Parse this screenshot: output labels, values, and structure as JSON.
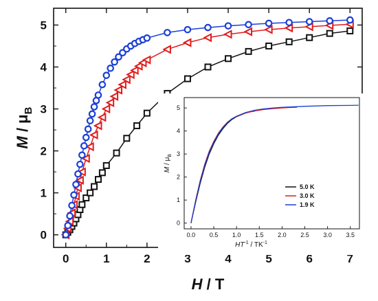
{
  "chart_data": [
    {
      "type": "scatter",
      "xlabel_main": "H",
      "xlabel_unit": " / T",
      "ylabel_main": "M",
      "ylabel_unit": " / μ",
      "ylabel_sub": "B",
      "xlim": [
        -0.3,
        7.3
      ],
      "ylim": [
        -0.3,
        5.4
      ],
      "xticks": [
        "0",
        "1",
        "2",
        "3",
        "4",
        "5",
        "6",
        "7"
      ],
      "yticks": [
        "0",
        "1",
        "2",
        "3",
        "4",
        "5"
      ],
      "series": [
        {
          "marker": "square",
          "color": "#111111",
          "x": [
            0.0,
            0.05,
            0.1,
            0.15,
            0.2,
            0.25,
            0.3,
            0.35,
            0.4,
            0.5,
            0.6,
            0.7,
            0.8,
            0.9,
            1.0,
            1.25,
            1.5,
            1.75,
            2.0,
            2.5,
            3.0,
            3.5,
            4.0,
            4.5,
            5.0,
            5.5,
            6.0,
            6.5,
            7.0
          ],
          "y": [
            0.0,
            0.06,
            0.12,
            0.2,
            0.28,
            0.38,
            0.48,
            0.6,
            0.72,
            0.88,
            1.0,
            1.15,
            1.32,
            1.48,
            1.65,
            1.95,
            2.3,
            2.6,
            2.9,
            3.37,
            3.72,
            4.0,
            4.2,
            4.37,
            4.5,
            4.6,
            4.7,
            4.8,
            4.86
          ]
        },
        {
          "marker": "triangle-left",
          "color": "#e01b1b",
          "x": [
            0.0,
            0.05,
            0.1,
            0.15,
            0.2,
            0.25,
            0.3,
            0.35,
            0.4,
            0.5,
            0.6,
            0.7,
            0.8,
            0.9,
            1.0,
            1.1,
            1.2,
            1.3,
            1.4,
            1.5,
            1.6,
            1.7,
            1.8,
            1.9,
            2.0,
            2.5,
            3.0,
            3.5,
            4.0,
            4.5,
            5.0,
            5.5,
            6.0,
            6.5,
            7.0
          ],
          "y": [
            0.0,
            0.15,
            0.32,
            0.52,
            0.72,
            0.92,
            1.12,
            1.3,
            1.5,
            1.82,
            2.1,
            2.38,
            2.6,
            2.8,
            3.0,
            3.15,
            3.3,
            3.45,
            3.58,
            3.7,
            3.82,
            3.92,
            4.02,
            4.1,
            4.17,
            4.42,
            4.58,
            4.7,
            4.78,
            4.84,
            4.89,
            4.93,
            4.96,
            4.99,
            5.02
          ]
        },
        {
          "marker": "circle",
          "color": "#1a3fd6",
          "x": [
            0.0,
            0.05,
            0.1,
            0.15,
            0.2,
            0.25,
            0.3,
            0.35,
            0.4,
            0.45,
            0.5,
            0.55,
            0.6,
            0.65,
            0.7,
            0.75,
            0.8,
            0.9,
            1.0,
            1.1,
            1.2,
            1.3,
            1.4,
            1.5,
            1.6,
            1.7,
            1.8,
            1.9,
            2.0,
            2.5,
            3.0,
            3.5,
            4.0,
            4.5,
            5.0,
            5.5,
            6.0,
            6.5,
            7.0
          ],
          "y": [
            0.0,
            0.22,
            0.45,
            0.7,
            0.95,
            1.2,
            1.45,
            1.68,
            1.9,
            2.12,
            2.32,
            2.52,
            2.72,
            2.88,
            3.05,
            3.2,
            3.33,
            3.58,
            3.8,
            3.97,
            4.12,
            4.24,
            4.34,
            4.43,
            4.5,
            4.56,
            4.61,
            4.65,
            4.69,
            4.82,
            4.89,
            4.94,
            4.98,
            5.01,
            5.04,
            5.06,
            5.08,
            5.1,
            5.12
          ]
        }
      ]
    },
    {
      "type": "line",
      "xlabel_main": "HT",
      "xlabel_sup": "-1",
      "xlabel_unit": " / TK",
      "xlabel_unit_sup": "-1",
      "ylabel_main": "M",
      "ylabel_unit": " / μ",
      "ylabel_sub": "B",
      "xlim": [
        -0.15,
        3.7
      ],
      "ylim": [
        -0.25,
        5.45
      ],
      "xticks": [
        "0.0",
        "0.5",
        "1.0",
        "1.5",
        "2.0",
        "2.5",
        "3.0",
        "3.5"
      ],
      "yticks": [
        "0",
        "1",
        "2",
        "3",
        "4",
        "5"
      ],
      "legend": "lower-right",
      "series": [
        {
          "name": "5.0 K",
          "color": "#111111",
          "x": [
            0.0,
            0.1,
            0.2,
            0.3,
            0.4,
            0.5,
            0.6,
            0.7,
            0.8,
            0.9,
            1.0,
            1.1,
            1.2,
            1.3,
            1.4
          ],
          "y": [
            0.0,
            0.9,
            1.72,
            2.42,
            3.0,
            3.45,
            3.82,
            4.1,
            4.33,
            4.5,
            4.62,
            4.7,
            4.78,
            4.84,
            4.86
          ]
        },
        {
          "name": "3.0 K",
          "color": "#e01b1b",
          "x": [
            0.0,
            0.1,
            0.2,
            0.3,
            0.4,
            0.5,
            0.6,
            0.7,
            0.8,
            0.9,
            1.0,
            1.2,
            1.4,
            1.6,
            1.8,
            2.0,
            2.2,
            2.33
          ],
          "y": [
            0.0,
            0.98,
            1.84,
            2.55,
            3.12,
            3.55,
            3.9,
            4.17,
            4.38,
            4.53,
            4.63,
            4.78,
            4.87,
            4.93,
            4.97,
            5.0,
            5.02,
            5.03
          ]
        },
        {
          "name": "1.9 K",
          "color": "#1a3fd6",
          "x": [
            0.0,
            0.1,
            0.2,
            0.3,
            0.4,
            0.5,
            0.6,
            0.7,
            0.8,
            0.9,
            1.0,
            1.2,
            1.4,
            1.6,
            1.8,
            2.0,
            2.5,
            3.0,
            3.5,
            3.68
          ],
          "y": [
            0.0,
            0.95,
            1.8,
            2.5,
            3.08,
            3.52,
            3.88,
            4.15,
            4.37,
            4.53,
            4.64,
            4.8,
            4.9,
            4.96,
            5.0,
            5.03,
            5.07,
            5.1,
            5.11,
            5.12
          ]
        }
      ]
    }
  ]
}
